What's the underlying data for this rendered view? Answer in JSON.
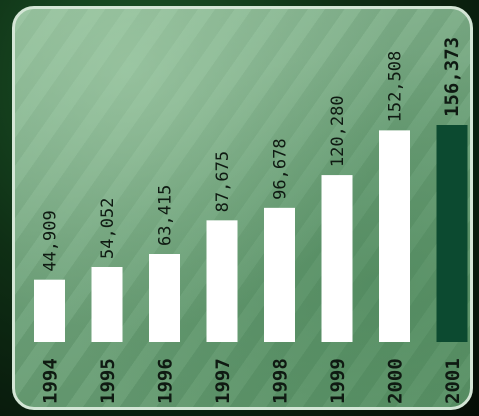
{
  "chart_data": {
    "type": "bar",
    "categories": [
      "1994",
      "1995",
      "1996",
      "1997",
      "1998",
      "1999",
      "2000",
      "2001"
    ],
    "values": [
      44909,
      54052,
      63415,
      87675,
      96678,
      120280,
      152508,
      156373
    ],
    "value_labels": [
      "44,909",
      "54,052",
      "63,415",
      "87,675",
      "96,678",
      "120,280",
      "152,508",
      "156,373"
    ],
    "highlight_index": 7,
    "ylim": [
      0,
      165000
    ],
    "title": "",
    "xlabel": "",
    "ylabel": "",
    "colors": {
      "bar": "#ffffff",
      "highlight": "#0c4a30",
      "text": "#0f1a12"
    }
  }
}
